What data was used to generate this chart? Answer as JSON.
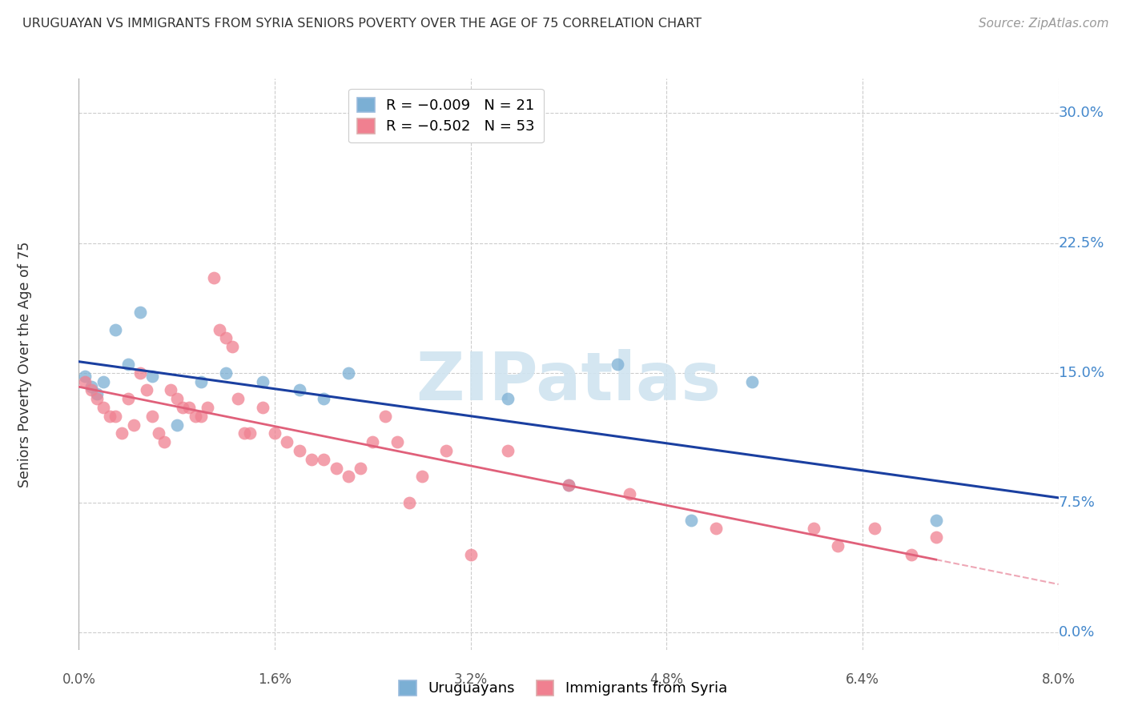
{
  "title": "URUGUAYAN VS IMMIGRANTS FROM SYRIA SENIORS POVERTY OVER THE AGE OF 75 CORRELATION CHART",
  "source": "Source: ZipAtlas.com",
  "ylabel": "Seniors Poverty Over the Age of 75",
  "xlim": [
    0.0,
    8.0
  ],
  "ylim": [
    -1.0,
    32.0
  ],
  "yticks": [
    0.0,
    7.5,
    15.0,
    22.5,
    30.0
  ],
  "xticks": [
    0.0,
    1.6,
    3.2,
    4.8,
    6.4,
    8.0
  ],
  "uruguayan_x": [
    0.05,
    0.1,
    0.15,
    0.2,
    0.3,
    0.4,
    0.5,
    0.6,
    0.8,
    1.0,
    1.2,
    1.5,
    1.8,
    2.0,
    2.2,
    3.5,
    4.0,
    4.4,
    5.0,
    5.5,
    7.0
  ],
  "uruguayan_y": [
    14.8,
    14.2,
    13.8,
    14.5,
    17.5,
    15.5,
    18.5,
    14.8,
    12.0,
    14.5,
    15.0,
    14.5,
    14.0,
    13.5,
    15.0,
    13.5,
    8.5,
    15.5,
    6.5,
    14.5,
    6.5
  ],
  "syria_x": [
    0.05,
    0.1,
    0.15,
    0.2,
    0.25,
    0.3,
    0.35,
    0.4,
    0.45,
    0.5,
    0.55,
    0.6,
    0.65,
    0.7,
    0.75,
    0.8,
    0.85,
    0.9,
    0.95,
    1.0,
    1.05,
    1.1,
    1.15,
    1.2,
    1.25,
    1.3,
    1.35,
    1.4,
    1.5,
    1.6,
    1.7,
    1.8,
    1.9,
    2.0,
    2.1,
    2.2,
    2.3,
    2.4,
    2.5,
    2.6,
    2.7,
    2.8,
    3.0,
    3.2,
    3.5,
    4.0,
    4.5,
    5.2,
    6.0,
    6.2,
    6.5,
    6.8,
    7.0
  ],
  "syria_y": [
    14.5,
    14.0,
    13.5,
    13.0,
    12.5,
    12.5,
    11.5,
    13.5,
    12.0,
    15.0,
    14.0,
    12.5,
    11.5,
    11.0,
    14.0,
    13.5,
    13.0,
    13.0,
    12.5,
    12.5,
    13.0,
    20.5,
    17.5,
    17.0,
    16.5,
    13.5,
    11.5,
    11.5,
    13.0,
    11.5,
    11.0,
    10.5,
    10.0,
    10.0,
    9.5,
    9.0,
    9.5,
    11.0,
    12.5,
    11.0,
    7.5,
    9.0,
    10.5,
    4.5,
    10.5,
    8.5,
    8.0,
    6.0,
    6.0,
    5.0,
    6.0,
    4.5,
    5.5
  ],
  "blue_color": "#7bafd4",
  "pink_color": "#f08090",
  "blue_line_color": "#1a3fa0",
  "pink_line_color": "#e0607a",
  "watermark_text": "ZIPatlas",
  "watermark_color": "#d0e4f0",
  "background_color": "#ffffff",
  "grid_color": "#cccccc",
  "right_tick_color": "#4488cc",
  "bottom_tick_color": "#555555",
  "title_color": "#333333",
  "source_color": "#999999",
  "ylabel_color": "#333333"
}
